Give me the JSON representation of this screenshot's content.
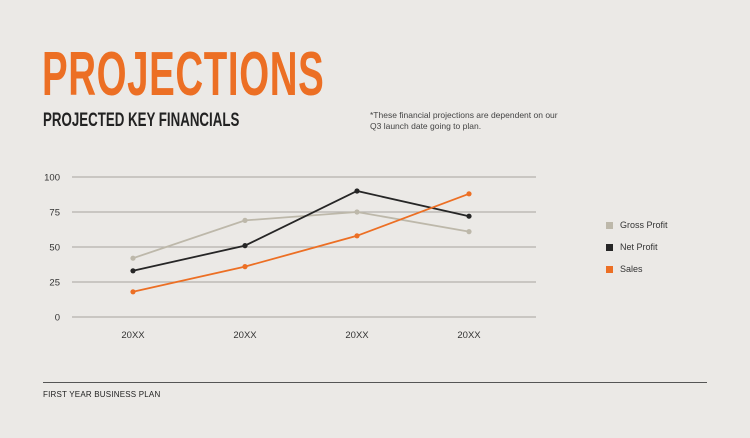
{
  "title": "PROJECTIONS",
  "subtitle": "PROJECTED KEY FINANCIALS",
  "note": "*These financial projections are dependent on our Q3 launch date going to plan.",
  "footer": "FIRST YEAR BUSINESS PLAN",
  "colors": {
    "accent": "#ec6f24",
    "gross": "#bdb8aa",
    "net": "#262626",
    "sales": "#ec6f24",
    "grid": "#b5b2ad"
  },
  "chart_data": {
    "type": "line",
    "categories": [
      "20XX",
      "20XX",
      "20XX",
      "20XX"
    ],
    "ylim": [
      0,
      100
    ],
    "yticks": [
      0,
      25,
      50,
      75,
      100
    ],
    "grid": true,
    "legend_position": "right",
    "series": [
      {
        "name": "Gross Profit",
        "color": "#bdb8aa",
        "values": [
          42,
          69,
          75,
          61
        ]
      },
      {
        "name": "Net Profit",
        "color": "#262626",
        "values": [
          33,
          51,
          90,
          72
        ]
      },
      {
        "name": "Sales",
        "color": "#ec6f24",
        "values": [
          18,
          36,
          58,
          88
        ]
      }
    ]
  }
}
